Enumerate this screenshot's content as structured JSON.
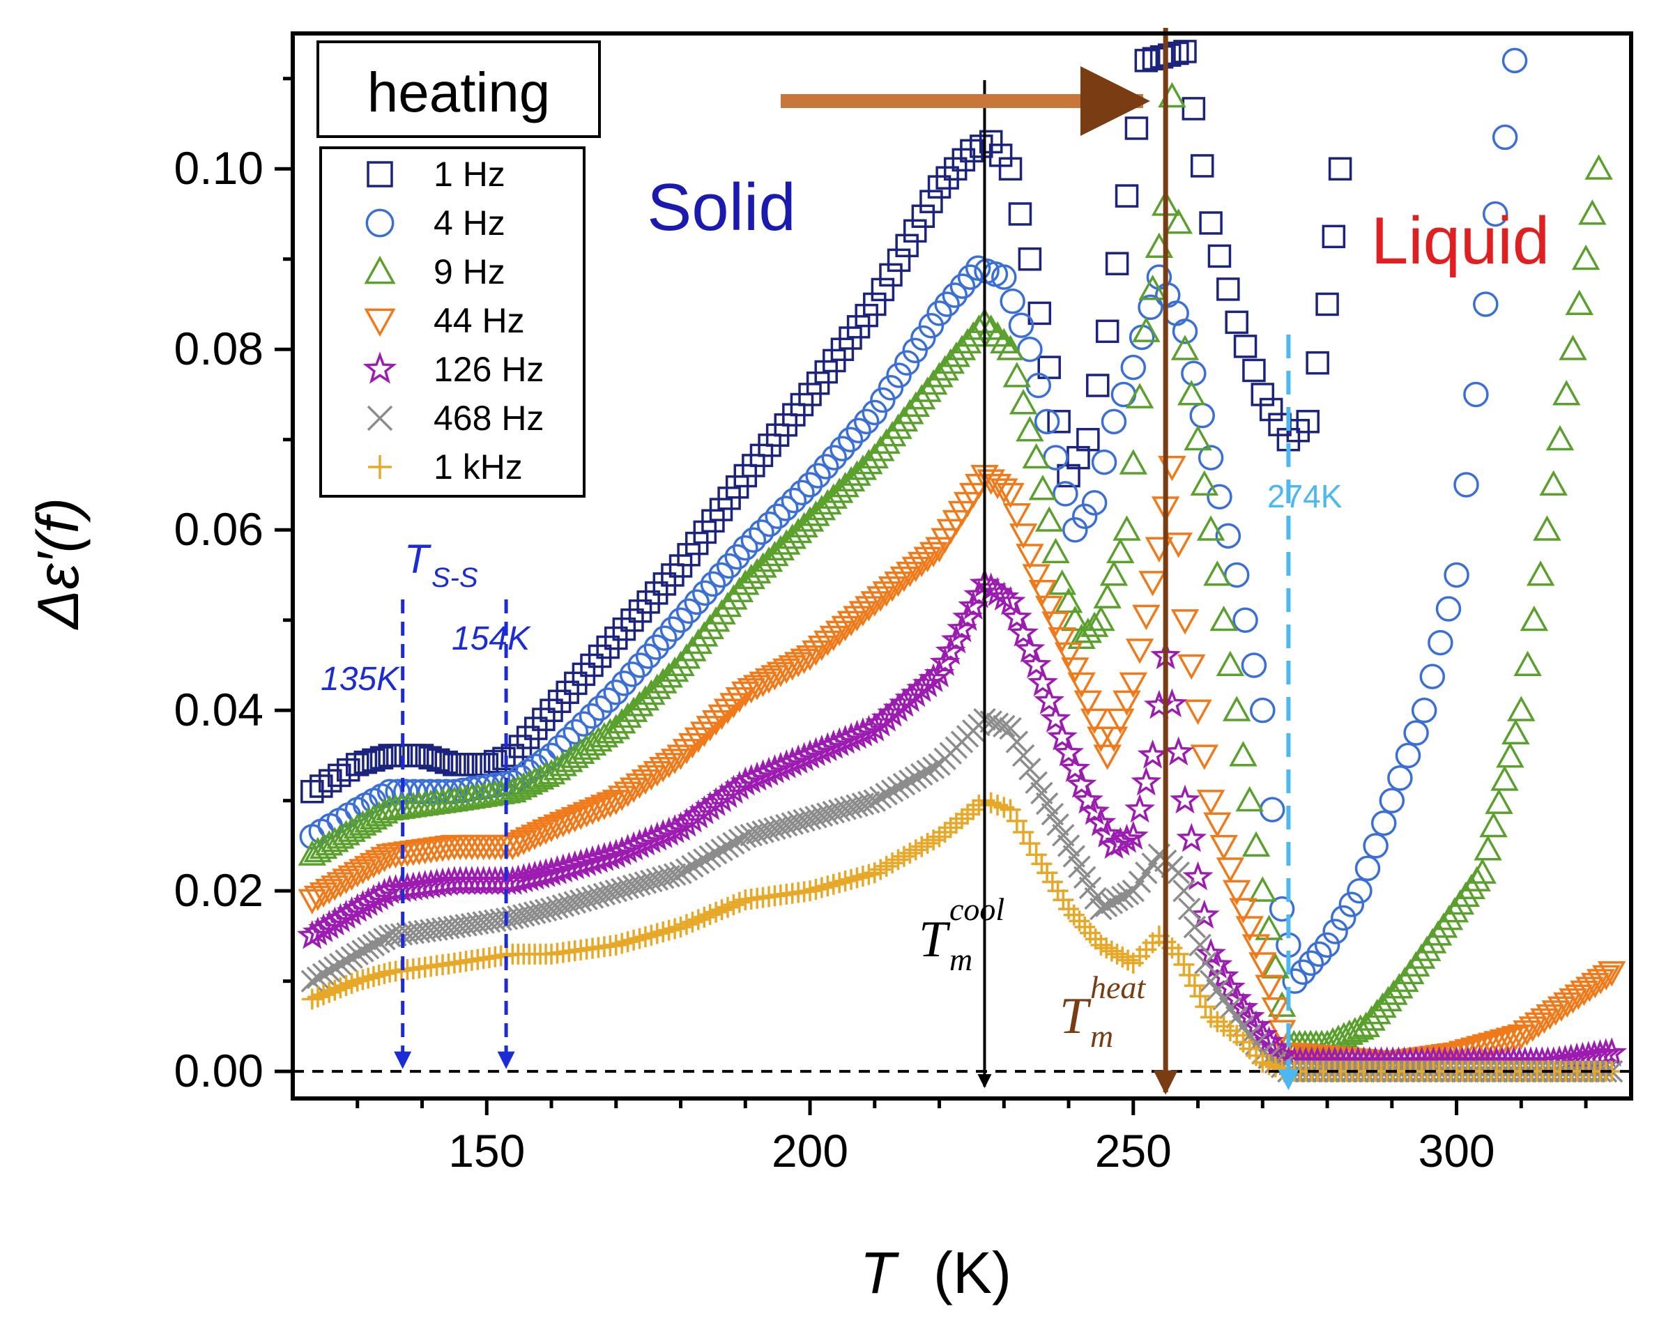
{
  "chart_data": {
    "type": "scatter",
    "title": "",
    "xlabel_symbol": "T",
    "xlabel_unit": "(K)",
    "ylabel": "Δε′(f)",
    "xlim": [
      120,
      327
    ],
    "ylim": [
      -0.003,
      0.115
    ],
    "x_ticks": [
      150,
      200,
      250,
      300
    ],
    "y_ticks": [
      0.0,
      0.02,
      0.04,
      0.06,
      0.08,
      0.1
    ],
    "legend_title": "heating",
    "series": [
      {
        "name": "1 Hz",
        "marker": "square",
        "color": "#1a237e",
        "points": [
          [
            123,
            0.031
          ],
          [
            130,
            0.034
          ],
          [
            135,
            0.035
          ],
          [
            140,
            0.035
          ],
          [
            145,
            0.034
          ],
          [
            150,
            0.034
          ],
          [
            154,
            0.035
          ],
          [
            160,
            0.04
          ],
          [
            170,
            0.048
          ],
          [
            180,
            0.056
          ],
          [
            190,
            0.066
          ],
          [
            200,
            0.075
          ],
          [
            210,
            0.085
          ],
          [
            220,
            0.098
          ],
          [
            225,
            0.102
          ],
          [
            228,
            0.103
          ],
          [
            231,
            0.1
          ],
          [
            234,
            0.09
          ],
          [
            237,
            0.078
          ],
          [
            240,
            0.066
          ],
          [
            243,
            0.07
          ],
          [
            246,
            0.082
          ],
          [
            249,
            0.097
          ],
          [
            252,
            0.112
          ],
          [
            258,
            0.113
          ],
          [
            262,
            0.094
          ],
          [
            266,
            0.083
          ],
          [
            270,
            0.075
          ],
          [
            274,
            0.07
          ],
          [
            277,
            0.072
          ],
          [
            280,
            0.085
          ],
          [
            282,
            0.1
          ]
        ]
      },
      {
        "name": "4 Hz",
        "marker": "circle",
        "color": "#3a6fd8",
        "points": [
          [
            123,
            0.026
          ],
          [
            130,
            0.029
          ],
          [
            135,
            0.031
          ],
          [
            145,
            0.031
          ],
          [
            154,
            0.032
          ],
          [
            160,
            0.035
          ],
          [
            170,
            0.042
          ],
          [
            180,
            0.05
          ],
          [
            190,
            0.058
          ],
          [
            200,
            0.065
          ],
          [
            210,
            0.073
          ],
          [
            220,
            0.084
          ],
          [
            226,
            0.089
          ],
          [
            230,
            0.088
          ],
          [
            234,
            0.08
          ],
          [
            238,
            0.068
          ],
          [
            241,
            0.06
          ],
          [
            244,
            0.063
          ],
          [
            247,
            0.072
          ],
          [
            250,
            0.078
          ],
          [
            254,
            0.088
          ],
          [
            258,
            0.082
          ],
          [
            262,
            0.068
          ],
          [
            266,
            0.055
          ],
          [
            270,
            0.04
          ],
          [
            273,
            0.018
          ],
          [
            275,
            0.01
          ],
          [
            280,
            0.014
          ],
          [
            285,
            0.02
          ],
          [
            290,
            0.03
          ],
          [
            295,
            0.04
          ],
          [
            300,
            0.055
          ],
          [
            303,
            0.075
          ],
          [
            306,
            0.095
          ],
          [
            309,
            0.112
          ]
        ]
      },
      {
        "name": "9 Hz",
        "marker": "triangle-up",
        "color": "#5aa02c",
        "points": [
          [
            123,
            0.024
          ],
          [
            130,
            0.027
          ],
          [
            135,
            0.029
          ],
          [
            145,
            0.03
          ],
          [
            154,
            0.031
          ],
          [
            160,
            0.033
          ],
          [
            170,
            0.038
          ],
          [
            180,
            0.045
          ],
          [
            190,
            0.054
          ],
          [
            200,
            0.061
          ],
          [
            210,
            0.068
          ],
          [
            220,
            0.077
          ],
          [
            227,
            0.083
          ],
          [
            231,
            0.08
          ],
          [
            235,
            0.068
          ],
          [
            239,
            0.054
          ],
          [
            242,
            0.048
          ],
          [
            245,
            0.05
          ],
          [
            249,
            0.06
          ],
          [
            252,
            0.082
          ],
          [
            255,
            0.096
          ],
          [
            256,
            0.108
          ],
          [
            258,
            0.08
          ],
          [
            262,
            0.06
          ],
          [
            266,
            0.04
          ],
          [
            270,
            0.02
          ],
          [
            274,
            0.003
          ],
          [
            280,
            0.003
          ],
          [
            286,
            0.005
          ],
          [
            292,
            0.01
          ],
          [
            298,
            0.016
          ],
          [
            304,
            0.022
          ],
          [
            310,
            0.04
          ],
          [
            314,
            0.06
          ],
          [
            318,
            0.08
          ],
          [
            322,
            0.1
          ]
        ]
      },
      {
        "name": "44 Hz",
        "marker": "triangle-down",
        "color": "#f07a1a",
        "points": [
          [
            123,
            0.019
          ],
          [
            130,
            0.022
          ],
          [
            135,
            0.024
          ],
          [
            145,
            0.025
          ],
          [
            154,
            0.025
          ],
          [
            160,
            0.027
          ],
          [
            170,
            0.03
          ],
          [
            180,
            0.035
          ],
          [
            190,
            0.042
          ],
          [
            200,
            0.046
          ],
          [
            210,
            0.052
          ],
          [
            220,
            0.058
          ],
          [
            227,
            0.066
          ],
          [
            231,
            0.064
          ],
          [
            235,
            0.055
          ],
          [
            239,
            0.048
          ],
          [
            242,
            0.043
          ],
          [
            246,
            0.035
          ],
          [
            250,
            0.043
          ],
          [
            254,
            0.058
          ],
          [
            256,
            0.067
          ],
          [
            258,
            0.05
          ],
          [
            262,
            0.03
          ],
          [
            266,
            0.02
          ],
          [
            270,
            0.012
          ],
          [
            274,
            0.002
          ],
          [
            290,
            0.001
          ],
          [
            300,
            0.002
          ],
          [
            310,
            0.004
          ],
          [
            318,
            0.008
          ],
          [
            324,
            0.011
          ]
        ]
      },
      {
        "name": "126 Hz",
        "marker": "star",
        "color": "#9c1bb0",
        "points": [
          [
            123,
            0.015
          ],
          [
            130,
            0.018
          ],
          [
            135,
            0.02
          ],
          [
            145,
            0.021
          ],
          [
            154,
            0.021
          ],
          [
            160,
            0.022
          ],
          [
            170,
            0.024
          ],
          [
            180,
            0.027
          ],
          [
            190,
            0.032
          ],
          [
            200,
            0.035
          ],
          [
            210,
            0.038
          ],
          [
            220,
            0.044
          ],
          [
            227,
            0.054
          ],
          [
            231,
            0.052
          ],
          [
            235,
            0.045
          ],
          [
            239,
            0.037
          ],
          [
            243,
            0.03
          ],
          [
            247,
            0.025
          ],
          [
            250,
            0.026
          ],
          [
            253,
            0.035
          ],
          [
            255,
            0.046
          ],
          [
            258,
            0.03
          ],
          [
            262,
            0.013
          ],
          [
            266,
            0.008
          ],
          [
            270,
            0.004
          ],
          [
            274,
            0.001
          ],
          [
            300,
            0.001
          ],
          [
            315,
            0.001
          ],
          [
            324,
            0.002
          ]
        ]
      },
      {
        "name": "468 Hz",
        "marker": "x",
        "color": "#8c8c8c",
        "points": [
          [
            123,
            0.01
          ],
          [
            130,
            0.013
          ],
          [
            135,
            0.015
          ],
          [
            145,
            0.016
          ],
          [
            154,
            0.017
          ],
          [
            160,
            0.018
          ],
          [
            170,
            0.02
          ],
          [
            180,
            0.022
          ],
          [
            190,
            0.026
          ],
          [
            200,
            0.028
          ],
          [
            210,
            0.03
          ],
          [
            220,
            0.034
          ],
          [
            227,
            0.039
          ],
          [
            231,
            0.038
          ],
          [
            235,
            0.032
          ],
          [
            240,
            0.025
          ],
          [
            245,
            0.018
          ],
          [
            250,
            0.02
          ],
          [
            254,
            0.024
          ],
          [
            257,
            0.022
          ],
          [
            262,
            0.01
          ],
          [
            266,
            0.006
          ],
          [
            270,
            0.002
          ],
          [
            274,
            0.0
          ],
          [
            300,
            0.0
          ],
          [
            324,
            0.0
          ]
        ]
      },
      {
        "name": "1 kHz",
        "marker": "plus",
        "color": "#e8a827",
        "points": [
          [
            123,
            0.008
          ],
          [
            130,
            0.01
          ],
          [
            135,
            0.011
          ],
          [
            145,
            0.012
          ],
          [
            154,
            0.013
          ],
          [
            160,
            0.013
          ],
          [
            170,
            0.014
          ],
          [
            180,
            0.016
          ],
          [
            190,
            0.019
          ],
          [
            200,
            0.02
          ],
          [
            210,
            0.022
          ],
          [
            220,
            0.026
          ],
          [
            227,
            0.03
          ],
          [
            231,
            0.029
          ],
          [
            235,
            0.024
          ],
          [
            240,
            0.018
          ],
          [
            245,
            0.014
          ],
          [
            250,
            0.012
          ],
          [
            254,
            0.015
          ],
          [
            257,
            0.013
          ],
          [
            262,
            0.006
          ],
          [
            266,
            0.004
          ],
          [
            270,
            0.001
          ],
          [
            274,
            0.0
          ],
          [
            300,
            0.0
          ],
          [
            324,
            0.0
          ]
        ]
      }
    ],
    "annotations": {
      "solid_label": "Solid",
      "liquid_label": "Liquid",
      "tss_symbol": "T",
      "tss_sub": "S-S",
      "t135": "135K",
      "t154": "154K",
      "t274": "274K",
      "tm_symbol": "T",
      "tm_sub": "m",
      "tm_cool_sup": "cool",
      "tm_heat_sup": "heat",
      "v135_x": 137,
      "v154_x": 153,
      "tm_cool_x": 227,
      "tm_heat_x": 255,
      "v274_x": 274,
      "baseline_y": 0
    }
  }
}
